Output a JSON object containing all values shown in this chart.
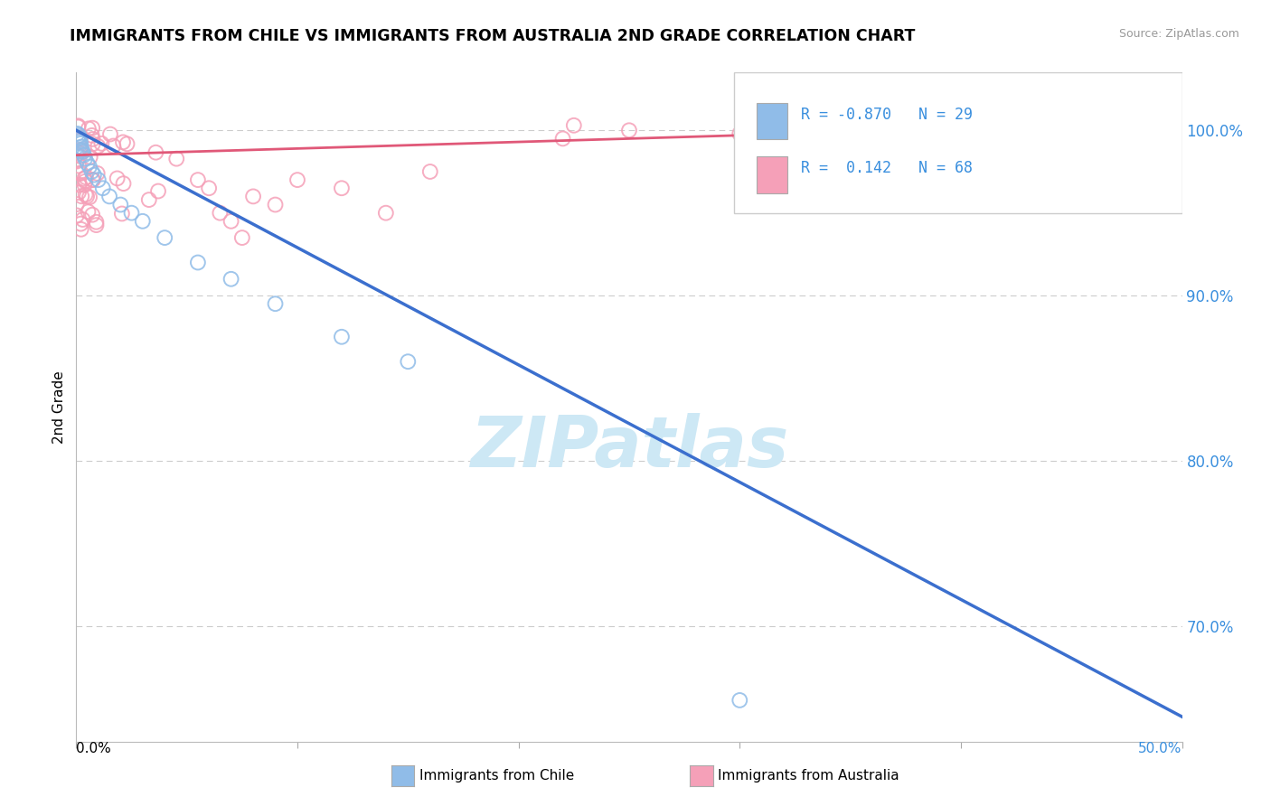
{
  "title": "IMMIGRANTS FROM CHILE VS IMMIGRANTS FROM AUSTRALIA 2ND GRADE CORRELATION CHART",
  "source": "Source: ZipAtlas.com",
  "ylabel": "2nd Grade",
  "xlim": [
    0.0,
    50.0
  ],
  "ylim": [
    63.0,
    103.5
  ],
  "yticks": [
    70.0,
    80.0,
    90.0,
    100.0
  ],
  "ytick_labels": [
    "70.0%",
    "80.0%",
    "90.0%",
    "100.0%"
  ],
  "chile_line_color": "#3b6fce",
  "australia_line_color": "#e05878",
  "chile_scatter_color": "#90bce8",
  "australia_scatter_color": "#f5a0b8",
  "watermark_color": "#cde8f5",
  "background_color": "#ffffff",
  "grid_color": "#cccccc",
  "legend_r1": "R = -0.870",
  "legend_n1": "N = 29",
  "legend_r2": "R =  0.142",
  "legend_n2": "N = 68",
  "chile_line_x0": 0.0,
  "chile_line_y0": 100.0,
  "chile_line_x1": 50.0,
  "chile_line_y1": 64.5,
  "australia_line_x0": 0.0,
  "australia_line_y0": 98.5,
  "australia_line_x1": 50.0,
  "australia_line_y1": 100.5,
  "bottom_label1": "Immigrants from Chile",
  "bottom_label2": "Immigrants from Australia"
}
